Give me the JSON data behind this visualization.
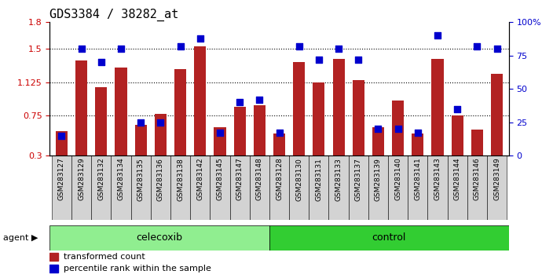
{
  "title": "GDS3384 / 38282_at",
  "samples": [
    "GSM283127",
    "GSM283129",
    "GSM283132",
    "GSM283134",
    "GSM283135",
    "GSM283136",
    "GSM283138",
    "GSM283142",
    "GSM283145",
    "GSM283147",
    "GSM283148",
    "GSM283128",
    "GSM283130",
    "GSM283131",
    "GSM283133",
    "GSM283137",
    "GSM283139",
    "GSM283140",
    "GSM283141",
    "GSM283143",
    "GSM283144",
    "GSM283146",
    "GSM283149"
  ],
  "bar_values": [
    0.58,
    1.37,
    1.07,
    1.29,
    0.65,
    0.77,
    1.27,
    1.53,
    0.62,
    0.85,
    0.87,
    0.55,
    1.35,
    1.12,
    1.39,
    1.15,
    0.62,
    0.92,
    0.55,
    1.39,
    0.75,
    0.59,
    1.22
  ],
  "percentile_values": [
    15,
    80,
    70,
    80,
    25,
    25,
    82,
    88,
    17,
    40,
    42,
    17,
    82,
    72,
    80,
    72,
    20,
    20,
    17,
    90,
    35,
    82,
    80
  ],
  "celecoxib_count": 11,
  "control_count": 12,
  "ylim_left": [
    0.3,
    1.8
  ],
  "ylim_right": [
    0,
    100
  ],
  "yticks_left": [
    0.3,
    0.75,
    1.125,
    1.5,
    1.8
  ],
  "ytick_labels_left": [
    "0.3",
    "0.75",
    "1.125",
    "1.5",
    "1.8"
  ],
  "yticks_right": [
    0,
    25,
    50,
    75,
    100
  ],
  "ytick_labels_right": [
    "0",
    "25",
    "50",
    "75",
    "100%"
  ],
  "bar_color": "#B22222",
  "dot_color": "#0000CD",
  "celecoxib_color": "#90EE90",
  "control_color": "#32CD32",
  "bg_color": "#FFFFFF",
  "xticklabel_bg": "#D3D3D3",
  "tick_label_color_left": "#CC0000",
  "tick_label_color_right": "#0000CD",
  "legend_red_label": "transformed count",
  "legend_blue_label": "percentile rank within the sample",
  "title_fontsize": 11,
  "bar_width": 0.6,
  "dot_size": 28
}
